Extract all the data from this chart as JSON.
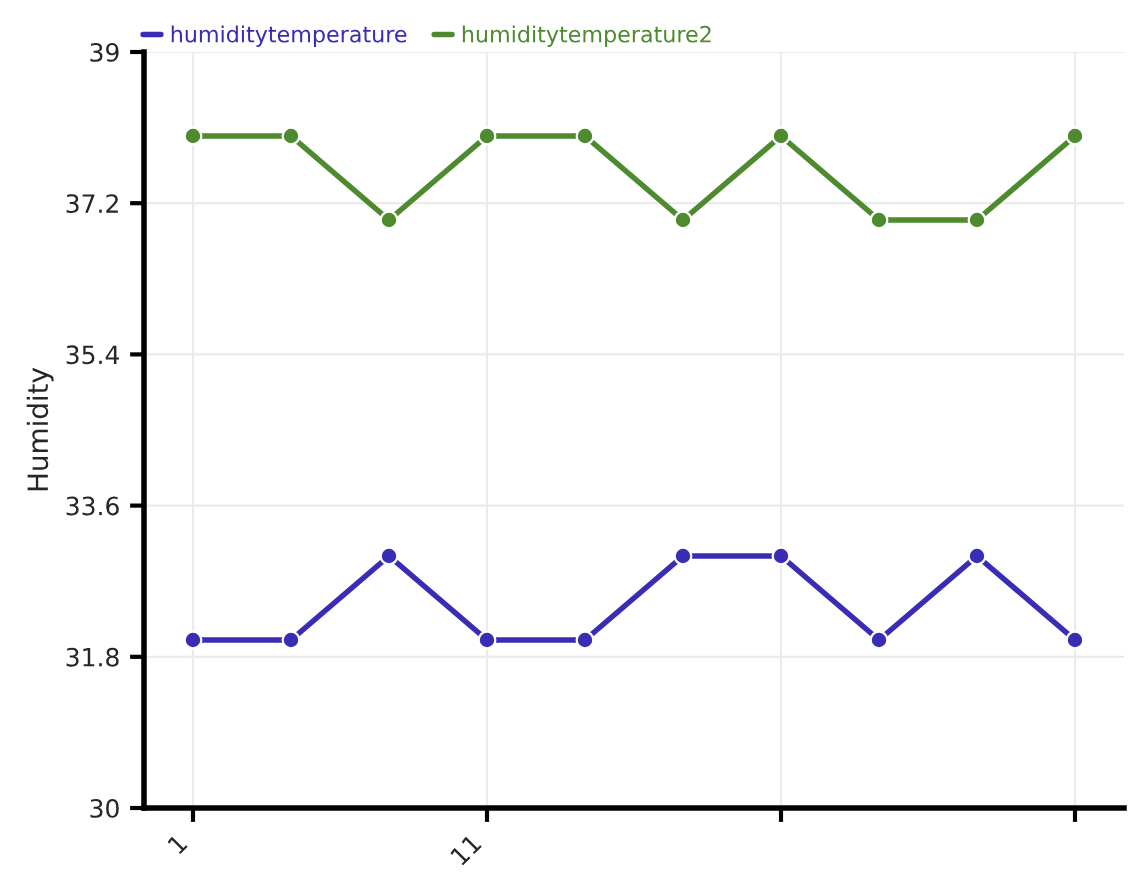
{
  "chart_data": {
    "type": "line",
    "ylabel": "Humidity",
    "categories": [
      "1",
      null,
      null,
      "11",
      null,
      null,
      null,
      null,
      null,
      null
    ],
    "series": [
      {
        "name": "humiditytemperature",
        "color": "#3a2db5",
        "values": [
          32,
          32,
          33,
          32,
          32,
          33,
          33,
          32,
          33,
          32
        ]
      },
      {
        "name": "humiditytemperature2",
        "color": "#4e8a2e",
        "values": [
          38,
          38,
          37,
          38,
          38,
          37,
          38,
          37,
          37,
          38
        ]
      }
    ],
    "ylim": [
      30,
      39
    ],
    "yticks": [
      30,
      31.8,
      33.6,
      35.4,
      37.2,
      39
    ],
    "grid": true,
    "legend": "top left",
    "marker": "circle",
    "line_style": "solid"
  }
}
